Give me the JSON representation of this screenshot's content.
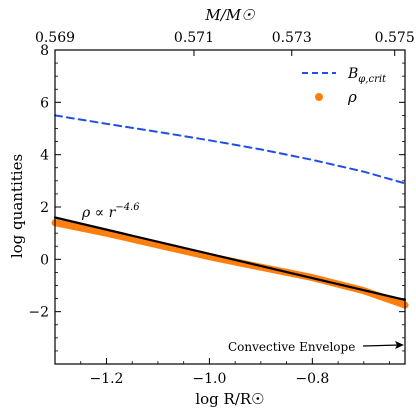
{
  "chart_data": {
    "type": "line",
    "title": "",
    "xlabel": "log R/R☉",
    "ylabel": "log quantities",
    "top_xlabel": "M/M☉",
    "xlim": [
      -1.3,
      -0.62
    ],
    "ylim": [
      -4,
      8
    ],
    "xticks": [
      {
        "value": -1.2,
        "label": "−1.2"
      },
      {
        "value": -1.0,
        "label": "−1.0"
      },
      {
        "value": -0.8,
        "label": "−0.8"
      }
    ],
    "yticks": [
      {
        "value": 8,
        "label": "8"
      },
      {
        "value": 6,
        "label": "6"
      },
      {
        "value": 4,
        "label": "4"
      },
      {
        "value": 2,
        "label": "2"
      },
      {
        "value": 0,
        "label": "0"
      },
      {
        "value": -2,
        "label": "−2"
      }
    ],
    "top_ticks": [
      {
        "value": -1.3,
        "label": "0.569"
      },
      {
        "value": -1.03,
        "label": "0.571"
      },
      {
        "value": -0.84,
        "label": "0.573"
      },
      {
        "value": -0.64,
        "label": "0.575"
      }
    ],
    "series": [
      {
        "name": "B_{φ,crit}",
        "style": "dashed",
        "color": "#1f4fe8",
        "x": [
          -1.3,
          -1.2,
          -1.1,
          -1.0,
          -0.9,
          -0.8,
          -0.7,
          -0.62
        ],
        "y": [
          5.5,
          5.18,
          4.87,
          4.55,
          4.2,
          3.8,
          3.35,
          2.9
        ]
      },
      {
        "name": "ρ",
        "style": "thick",
        "color": "#ff7f0e",
        "x": [
          -1.3,
          -1.2,
          -1.1,
          -1.0,
          -0.9,
          -0.8,
          -0.7,
          -0.62
        ],
        "y": [
          1.4,
          1.0,
          0.55,
          0.1,
          -0.3,
          -0.7,
          -1.2,
          -1.75
        ]
      },
      {
        "name": "fit",
        "style": "solid",
        "color": "#000000",
        "x": [
          -1.3,
          -0.62
        ],
        "y": [
          1.6,
          -1.55
        ]
      }
    ],
    "legend": {
      "position": "top-right",
      "entries": [
        {
          "label": "B",
          "sub": "φ,crit",
          "style": "dashed",
          "color": "#1f4fe8"
        },
        {
          "label": "ρ",
          "sub": "",
          "style": "dot",
          "color": "#ff7f0e"
        }
      ]
    },
    "annotations": {
      "fit_label": "ρ ∝ r",
      "fit_exponent": "−4.6",
      "envelope_label": "Convective Envelope"
    }
  }
}
